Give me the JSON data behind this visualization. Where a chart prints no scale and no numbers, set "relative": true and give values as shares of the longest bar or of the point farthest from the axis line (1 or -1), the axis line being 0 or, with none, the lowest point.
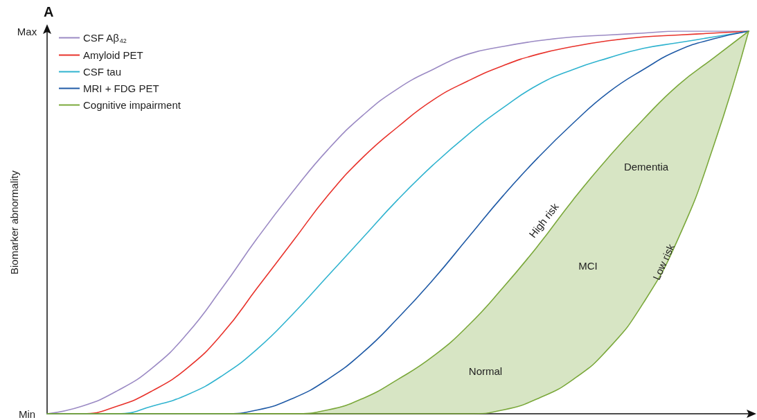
{
  "chart_data": {
    "type": "line",
    "title": "A",
    "ylabel": "Biomarker abnormality",
    "categories": [
      null,
      null,
      null,
      null,
      null,
      null,
      null,
      null,
      null,
      null,
      null,
      null,
      null,
      null,
      null,
      null,
      null,
      null,
      null,
      null,
      null
    ],
    "relative": true,
    "grid": false,
    "legend": "top left",
    "marker": "none",
    "line_style": "solid",
    "series": [
      {
        "name": "CSF Aβ$_{42}$",
        "color": "#9b8ac4",
        "values": [
          0,
          0.02,
          0.06,
          0.12,
          0.21,
          0.33,
          0.46,
          0.58,
          0.69,
          0.78,
          0.85,
          0.9,
          0.94,
          0.96,
          0.975,
          0.985,
          0.99,
          0.995,
          1,
          1,
          1
        ]
      },
      {
        "name": "Amyloid PET",
        "color": "#e8322b",
        "values": [
          0,
          0,
          0.02,
          0.06,
          0.12,
          0.21,
          0.33,
          0.45,
          0.57,
          0.67,
          0.75,
          0.82,
          0.87,
          0.91,
          0.94,
          0.96,
          0.975,
          0.985,
          0.99,
          0.995,
          1
        ]
      },
      {
        "name": "CSF tau",
        "color": "#2fb3cf",
        "values": [
          0,
          0,
          0,
          0.02,
          0.05,
          0.1,
          0.17,
          0.26,
          0.36,
          0.46,
          0.56,
          0.65,
          0.73,
          0.8,
          0.86,
          0.9,
          0.93,
          0.955,
          0.97,
          0.985,
          1
        ]
      },
      {
        "name": "MRI + FDG PET",
        "color": "#1f5aa6",
        "values": [
          0,
          0,
          0,
          0,
          0,
          0,
          0.01,
          0.04,
          0.09,
          0.16,
          0.25,
          0.35,
          0.46,
          0.57,
          0.67,
          0.76,
          0.84,
          0.9,
          0.95,
          0.98,
          1
        ]
      },
      {
        "name": "Cognitive impairment",
        "color": "#7aa83a",
        "values": [
          0,
          0,
          0,
          0,
          0,
          0,
          0,
          0,
          0.01,
          0.04,
          0.09,
          0.15,
          0.23,
          0.33,
          0.44,
          0.56,
          0.67,
          0.77,
          0.86,
          0.93,
          1
        ],
        "upper": [
          0,
          0,
          0,
          0,
          0,
          0,
          0,
          0,
          0.01,
          0.04,
          0.09,
          0.15,
          0.23,
          0.33,
          0.44,
          0.56,
          0.67,
          0.77,
          0.86,
          0.93,
          1
        ],
        "lower": [
          0,
          0,
          0,
          0,
          0,
          0,
          0,
          0,
          0,
          0,
          0,
          0,
          0,
          0.01,
          0.04,
          0.09,
          0.17,
          0.29,
          0.46,
          0.7,
          1
        ]
      }
    ],
    "annotations": [
      "High risk",
      "Low risk",
      "Dementia",
      "MCI",
      "Normal",
      "Min",
      "Max"
    ]
  }
}
